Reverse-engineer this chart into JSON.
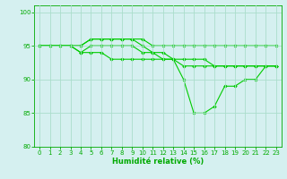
{
  "line1": [
    95,
    95,
    95,
    95,
    95,
    96,
    96,
    96,
    96,
    96,
    95,
    94,
    94,
    93,
    90,
    85,
    85,
    86,
    89,
    89,
    90,
    90,
    92,
    92
  ],
  "line2": [
    95,
    95,
    95,
    95,
    94,
    95,
    95,
    95,
    95,
    95,
    94,
    94,
    93,
    93,
    92,
    92,
    92,
    92,
    92,
    92,
    92,
    92,
    92,
    92
  ],
  "line3": [
    95,
    95,
    95,
    95,
    94,
    94,
    94,
    93,
    93,
    93,
    93,
    93,
    93,
    93,
    93,
    93,
    93,
    92,
    92,
    92,
    92,
    92,
    92,
    92
  ],
  "line4": [
    95,
    95,
    95,
    95,
    95,
    96,
    96,
    96,
    96,
    96,
    96,
    95,
    95,
    95,
    95,
    95,
    95,
    95,
    95,
    95,
    95,
    95,
    95,
    95
  ],
  "x": [
    0,
    1,
    2,
    3,
    4,
    5,
    6,
    7,
    8,
    9,
    10,
    11,
    12,
    13,
    14,
    15,
    16,
    17,
    18,
    19,
    20,
    21,
    22,
    23
  ],
  "line_color": "#00cc00",
  "bg_color": "#d5f0f0",
  "grid_color": "#aaddcc",
  "axis_color": "#00aa00",
  "xlabel": "Humidité relative (%)",
  "ylim": [
    80,
    101
  ],
  "xlim": [
    -0.5,
    23.5
  ],
  "yticks": [
    80,
    85,
    90,
    95,
    100
  ],
  "xticks": [
    0,
    1,
    2,
    3,
    4,
    5,
    6,
    7,
    8,
    9,
    10,
    11,
    12,
    13,
    14,
    15,
    16,
    17,
    18,
    19,
    20,
    21,
    22,
    23
  ]
}
